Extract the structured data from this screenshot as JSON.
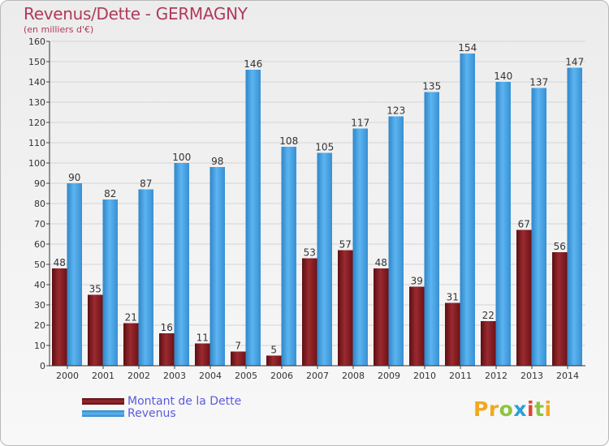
{
  "title": "Revenus/Dette - GERMAGNY",
  "subtitle": "(en milliers d'€)",
  "logo": {
    "letters": [
      "P",
      "r",
      "o",
      "x",
      "i",
      "t",
      "i"
    ],
    "colors": [
      "#f2a81d",
      "#f2a81d",
      "#8bc53f",
      "#2a9fd8",
      "#e8402f",
      "#8bc53f",
      "#f2a81d"
    ]
  },
  "colors": {
    "dette": "#7a1418",
    "revenus": "#3d9fe0"
  },
  "chart_data": {
    "type": "bar",
    "categories": [
      "2000",
      "2001",
      "2002",
      "2003",
      "2004",
      "2005",
      "2006",
      "2007",
      "2008",
      "2009",
      "2010",
      "2011",
      "2012",
      "2013",
      "2014"
    ],
    "series": [
      {
        "name": "Montant de la Dette",
        "values": [
          48,
          35,
          21,
          16,
          11,
          7,
          5,
          53,
          57,
          48,
          39,
          31,
          22,
          67,
          56
        ]
      },
      {
        "name": "Revenus",
        "values": [
          90,
          82,
          87,
          100,
          98,
          146,
          108,
          105,
          117,
          123,
          135,
          154,
          140,
          137,
          147
        ]
      }
    ],
    "ylim": [
      0,
      160
    ],
    "ytick_step": 10,
    "grid": true,
    "legend": "bottom-left"
  }
}
